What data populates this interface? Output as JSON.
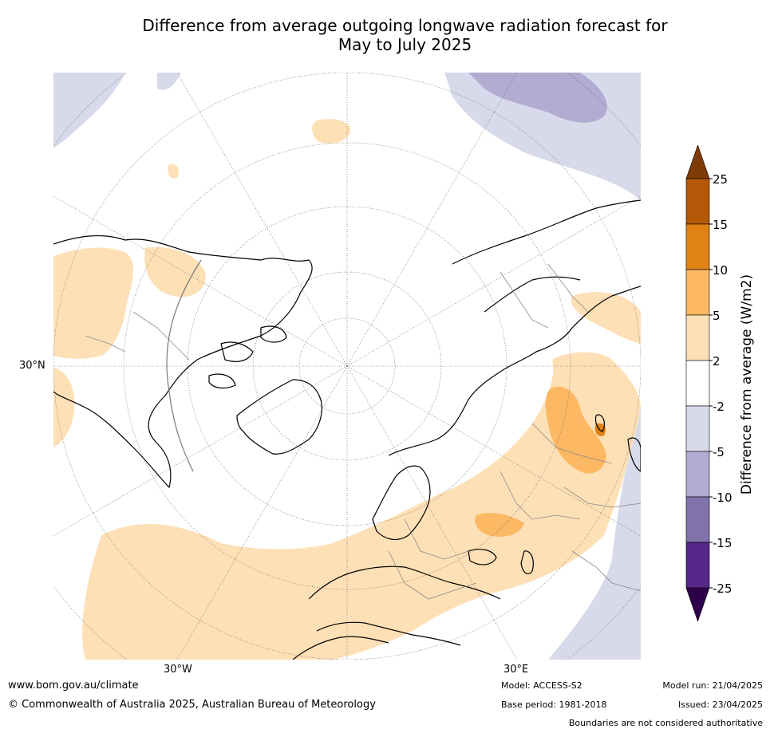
{
  "title_line1": "Difference from average outgoing longwave radiation forecast for",
  "title_line2": "May to July 2025",
  "map": {
    "lat_label": "30°N",
    "lon_labels": [
      "30°W",
      "30°E"
    ]
  },
  "colorbar": {
    "label": "Difference from average (W/m2)",
    "ticks": [
      "25",
      "15",
      "10",
      "5",
      "2",
      "-2",
      "-5",
      "-10",
      "-15",
      "-25"
    ],
    "bands": [
      {
        "range": "15 to 25",
        "color": "#b35806"
      },
      {
        "range": "10 to 15",
        "color": "#e08214"
      },
      {
        "range": "5 to 10",
        "color": "#fdb863"
      },
      {
        "range": "2 to 5",
        "color": "#fee0b6"
      },
      {
        "range": "-2 to 2",
        "color": "#ffffff"
      },
      {
        "range": "-5 to -2",
        "color": "#d8daeb"
      },
      {
        "range": "-10 to -5",
        "color": "#b2abd2"
      },
      {
        "range": "-15 to -10",
        "color": "#8073ac"
      },
      {
        "range": "-25 to -15",
        "color": "#542788"
      }
    ],
    "over_color": "#7f3b08",
    "under_color": "#2d004b"
  },
  "footer": {
    "website": "www.bom.gov.au/climate",
    "copyright": "© Commonwealth of Australia 2025, Australian Bureau of Meteorology",
    "model": "Model: ACCESS-S2",
    "base_period": "Base period: 1981-2018",
    "model_run": "Model run: 21/04/2025",
    "issued": "Issued: 23/04/2025",
    "disclaimer": "Boundaries are not considered authoritative"
  }
}
